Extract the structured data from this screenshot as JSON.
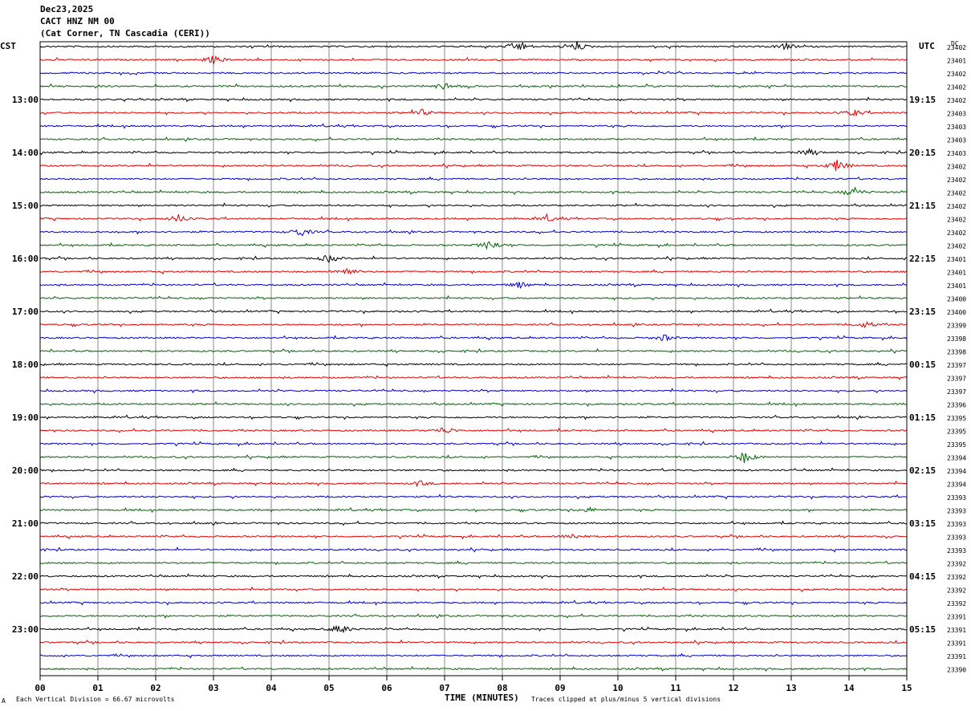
{
  "header": {
    "date": "Dec23,2025",
    "station": "CACT HNZ NM 00",
    "location": "(Cat Corner, TN Cascadia (CERI))"
  },
  "left_zone": "CST",
  "right_zone": "UTC",
  "dc_label": "DC",
  "footer": {
    "scale": "Each Vertical Division =   66.67 microvolts",
    "xlabel": "TIME (MINUTES)",
    "clip_note": "Traces clipped at plus/minus 5 vertical divisions",
    "corner_mark": "A"
  },
  "chart_data": {
    "type": "line",
    "title": "CACT HNZ NM 00",
    "xlabel": "TIME (MINUTES)",
    "ylabel": "",
    "xlim": [
      0,
      15
    ],
    "x_ticks": [
      "00",
      "01",
      "02",
      "03",
      "04",
      "05",
      "06",
      "07",
      "08",
      "09",
      "10",
      "11",
      "12",
      "13",
      "14",
      "15"
    ],
    "trace_count": 48,
    "trace_colors": [
      "#000000",
      "#e00000",
      "#0000cc",
      "#006600"
    ],
    "left_time_labels": [
      "13:00",
      "14:00",
      "15:00",
      "16:00",
      "17:00",
      "18:00",
      "19:00",
      "20:00",
      "21:00",
      "22:00",
      "23:00"
    ],
    "right_time_labels": [
      "19:15",
      "20:15",
      "21:15",
      "22:15",
      "23:15",
      "00:15",
      "01:15",
      "02:15",
      "03:15",
      "04:15",
      "05:15"
    ],
    "dc_offsets": [
      "23402",
      "23401",
      "23402",
      "23402",
      "23402",
      "23403",
      "23403",
      "23403",
      "23403",
      "23402",
      "23402",
      "23402",
      "23402",
      "23402",
      "23402",
      "23402",
      "23401",
      "23401",
      "23401",
      "23400",
      "23400",
      "23399",
      "23398",
      "23398",
      "23397",
      "23397",
      "23397",
      "23396",
      "23395",
      "23395",
      "23395",
      "23394",
      "23394",
      "23394",
      "23393",
      "23393",
      "23393",
      "23393",
      "23393",
      "23392",
      "23392",
      "23392",
      "23392",
      "23391",
      "23391",
      "23391",
      "23391",
      "23390"
    ],
    "scale_microvolts_per_division": 66.67,
    "clip_divisions": 5,
    "events": [
      {
        "trace": 0,
        "minute": 8.3,
        "amp": 6
      },
      {
        "trace": 0,
        "minute": 9.3,
        "amp": 5
      },
      {
        "trace": 0,
        "minute": 12.9,
        "amp": 4
      },
      {
        "trace": 1,
        "minute": 3.0,
        "amp": 5
      },
      {
        "trace": 3,
        "minute": 7.0,
        "amp": 5
      },
      {
        "trace": 5,
        "minute": 6.6,
        "amp": 4
      },
      {
        "trace": 5,
        "minute": 14.1,
        "amp": 4
      },
      {
        "trace": 8,
        "minute": 13.3,
        "amp": 4
      },
      {
        "trace": 9,
        "minute": 13.8,
        "amp": 8
      },
      {
        "trace": 11,
        "minute": 14.1,
        "amp": 6
      },
      {
        "trace": 13,
        "minute": 2.4,
        "amp": 5
      },
      {
        "trace": 13,
        "minute": 8.8,
        "amp": 4
      },
      {
        "trace": 14,
        "minute": 4.5,
        "amp": 6
      },
      {
        "trace": 15,
        "minute": 7.8,
        "amp": 7
      },
      {
        "trace": 16,
        "minute": 5.0,
        "amp": 5
      },
      {
        "trace": 17,
        "minute": 5.3,
        "amp": 6
      },
      {
        "trace": 18,
        "minute": 8.3,
        "amp": 4
      },
      {
        "trace": 21,
        "minute": 14.3,
        "amp": 4
      },
      {
        "trace": 22,
        "minute": 10.8,
        "amp": 4
      },
      {
        "trace": 29,
        "minute": 7.0,
        "amp": 5
      },
      {
        "trace": 31,
        "minute": 12.2,
        "amp": 8
      },
      {
        "trace": 33,
        "minute": 6.6,
        "amp": 3
      },
      {
        "trace": 35,
        "minute": 9.5,
        "amp": 3
      },
      {
        "trace": 37,
        "minute": 9.2,
        "amp": 4
      },
      {
        "trace": 44,
        "minute": 5.2,
        "amp": 6
      }
    ]
  }
}
